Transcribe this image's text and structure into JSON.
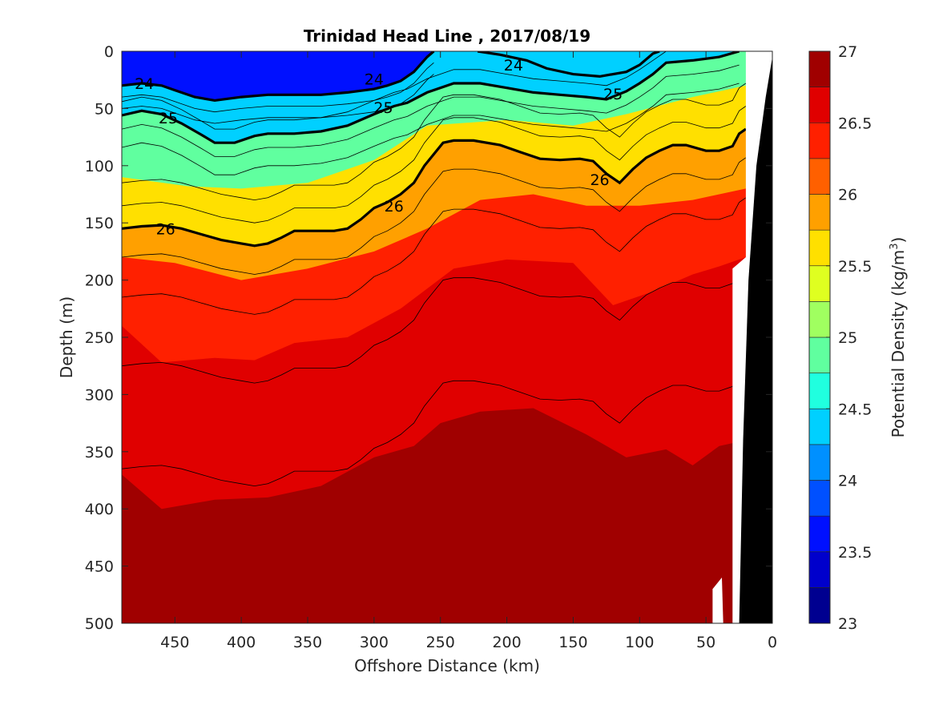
{
  "chart_data": {
    "type": "contour",
    "title": "Trinidad Head Line , 2017/08/19",
    "xlabel": "Offshore Distance (km)",
    "ylabel": "Depth (m)",
    "colorbar_label_main": "Potential Density (kg/m",
    "colorbar_label_sup": "3",
    "colorbar_label_end": ")",
    "xlim": [
      490,
      0
    ],
    "ylim": [
      0,
      500
    ],
    "x_reversed": true,
    "y_reversed": true,
    "xticks": [
      450,
      400,
      350,
      300,
      250,
      200,
      150,
      100,
      50,
      0
    ],
    "yticks": [
      0,
      50,
      100,
      150,
      200,
      250,
      300,
      350,
      400,
      450,
      500
    ],
    "xtick_labels": [
      "450",
      "400",
      "350",
      "300",
      "250",
      "200",
      "150",
      "100",
      "50",
      "0"
    ],
    "ytick_labels": [
      "0",
      "50",
      "100",
      "150",
      "200",
      "250",
      "300",
      "350",
      "400",
      "450",
      "500"
    ],
    "colorbar_ticks": [
      23,
      23.5,
      24,
      24.5,
      25,
      25.5,
      26,
      26.5,
      27
    ],
    "colorbar_tick_labels": [
      "23",
      "23.5",
      "24",
      "24.5",
      "25",
      "25.5",
      "26",
      "26.5",
      "27"
    ],
    "levels": [
      23,
      23.25,
      23.5,
      23.75,
      24,
      24.25,
      24.5,
      24.75,
      25,
      25.25,
      25.5,
      25.75,
      26,
      26.25,
      26.5,
      26.75,
      27
    ],
    "level_colors": [
      "#000090",
      "#0000CC",
      "#0010FF",
      "#0050FF",
      "#0090FF",
      "#00D0FF",
      "#20FFDF",
      "#60FF9F",
      "#A0FF60",
      "#DFFF20",
      "#FFE000",
      "#FFA000",
      "#FF6000",
      "#FF2000",
      "#E00000",
      "#A00000"
    ],
    "isopycnals": [
      {
        "value": 24,
        "label": "24",
        "points": [
          [
            490,
            30
          ],
          [
            475,
            28
          ],
          [
            460,
            30
          ],
          [
            450,
            34
          ],
          [
            435,
            40
          ],
          [
            420,
            43
          ],
          [
            400,
            40
          ],
          [
            380,
            38
          ],
          [
            360,
            38
          ],
          [
            340,
            38
          ],
          [
            320,
            36
          ],
          [
            300,
            33
          ],
          [
            290,
            30
          ],
          [
            280,
            26
          ],
          [
            270,
            18
          ],
          [
            260,
            5
          ],
          [
            255,
            0
          ]
        ],
        "labels": [
          {
            "x": 473,
            "y": 28,
            "text": "24"
          },
          {
            "x": 300,
            "y": 24,
            "text": "24"
          }
        ]
      },
      {
        "value": 24,
        "label": "24",
        "points": [
          [
            222,
            0
          ],
          [
            205,
            3
          ],
          [
            185,
            8
          ],
          [
            170,
            15
          ],
          [
            150,
            20
          ],
          [
            130,
            22
          ],
          [
            110,
            18
          ],
          [
            100,
            12
          ],
          [
            90,
            2
          ],
          [
            85,
            0
          ]
        ],
        "labels": [
          {
            "x": 195,
            "y": 12,
            "text": "24"
          }
        ]
      },
      {
        "value": 25,
        "label": "25",
        "points": [
          [
            490,
            56
          ],
          [
            475,
            52
          ],
          [
            460,
            55
          ],
          [
            445,
            63
          ],
          [
            430,
            73
          ],
          [
            420,
            80
          ],
          [
            405,
            80
          ],
          [
            390,
            74
          ],
          [
            380,
            72
          ],
          [
            360,
            72
          ],
          [
            340,
            70
          ],
          [
            320,
            65
          ],
          [
            300,
            55
          ],
          [
            285,
            48
          ],
          [
            275,
            45
          ],
          [
            260,
            36
          ],
          [
            240,
            28
          ],
          [
            220,
            28
          ],
          [
            200,
            32
          ],
          [
            180,
            36
          ],
          [
            160,
            38
          ],
          [
            140,
            40
          ],
          [
            125,
            42
          ],
          [
            110,
            35
          ],
          [
            100,
            28
          ],
          [
            90,
            20
          ],
          [
            80,
            10
          ],
          [
            60,
            8
          ],
          [
            40,
            5
          ],
          [
            25,
            0
          ]
        ],
        "labels": [
          {
            "x": 455,
            "y": 58,
            "text": "25"
          },
          {
            "x": 293,
            "y": 49,
            "text": "25"
          },
          {
            "x": 120,
            "y": 37,
            "text": "25"
          }
        ]
      },
      {
        "value": 26,
        "label": "26",
        "points": [
          [
            490,
            155
          ],
          [
            475,
            153
          ],
          [
            460,
            152
          ],
          [
            445,
            155
          ],
          [
            430,
            160
          ],
          [
            415,
            165
          ],
          [
            400,
            168
          ],
          [
            390,
            170
          ],
          [
            380,
            168
          ],
          [
            370,
            163
          ],
          [
            360,
            157
          ],
          [
            340,
            157
          ],
          [
            330,
            157
          ],
          [
            320,
            155
          ],
          [
            310,
            147
          ],
          [
            300,
            137
          ],
          [
            290,
            132
          ],
          [
            280,
            125
          ],
          [
            270,
            115
          ],
          [
            262,
            100
          ],
          [
            255,
            90
          ],
          [
            248,
            80
          ],
          [
            240,
            78
          ],
          [
            225,
            78
          ],
          [
            205,
            82
          ],
          [
            190,
            88
          ],
          [
            175,
            94
          ],
          [
            160,
            95
          ],
          [
            145,
            94
          ],
          [
            135,
            96
          ],
          [
            125,
            107
          ],
          [
            115,
            115
          ],
          [
            105,
            103
          ],
          [
            95,
            93
          ],
          [
            85,
            87
          ],
          [
            75,
            82
          ],
          [
            65,
            82
          ],
          [
            50,
            87
          ],
          [
            40,
            87
          ],
          [
            30,
            83
          ],
          [
            25,
            72
          ],
          [
            20,
            68
          ]
        ],
        "labels": [
          {
            "x": 457,
            "y": 155,
            "text": "26"
          },
          {
            "x": 285,
            "y": 135,
            "text": "26"
          },
          {
            "x": 130,
            "y": 112,
            "text": "26"
          }
        ]
      }
    ],
    "bottom_mask": [
      [
        40,
        470
      ],
      [
        35,
        475
      ],
      [
        25,
        475
      ],
      [
        20,
        500
      ],
      [
        0,
        500
      ]
    ]
  }
}
